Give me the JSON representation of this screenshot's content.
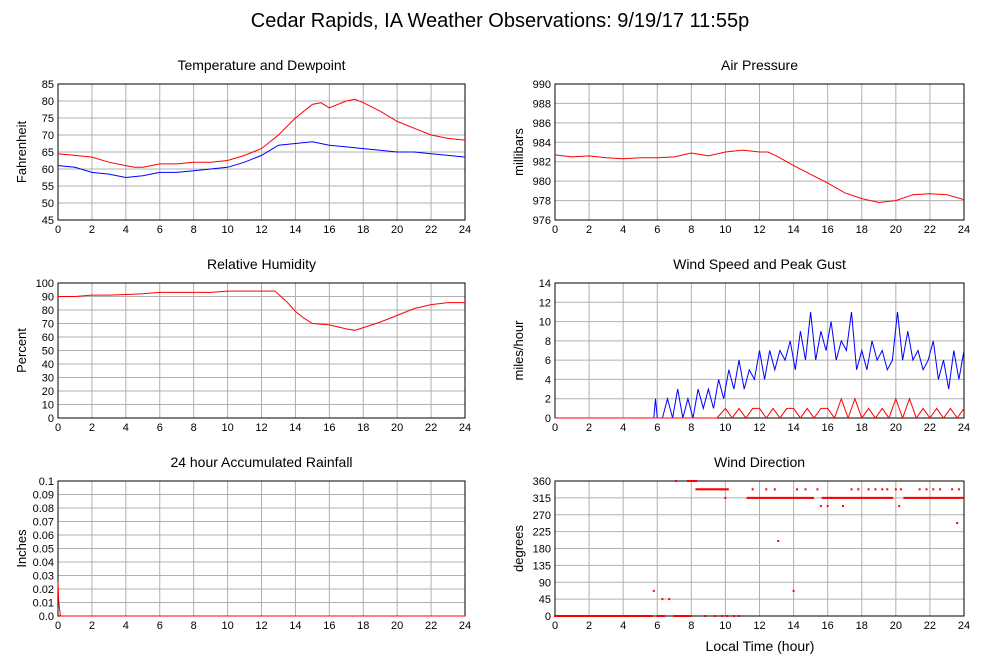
{
  "title": "Cedar Rapids, IA Weather Observations: 9/19/17 11:55p",
  "xlabel": "Local Time (hour)",
  "colors": {
    "red": "#ff0000",
    "blue": "#0000ff",
    "grid": "#b0b0b0",
    "frame": "#000000"
  },
  "chart_data": [
    {
      "type": "line",
      "title": "Temperature and Dewpoint",
      "ylabel": "Fahrenheit",
      "xlim": [
        0,
        24
      ],
      "ylim": [
        45,
        85
      ],
      "xticks": [
        0,
        2,
        4,
        6,
        8,
        10,
        12,
        14,
        16,
        18,
        20,
        22,
        24
      ],
      "yticks": [
        45,
        50,
        55,
        60,
        65,
        70,
        75,
        80,
        85
      ],
      "grid": true,
      "series": [
        {
          "color": "#ff0000",
          "x": [
            0,
            1,
            2,
            3,
            4,
            4.5,
            5,
            6,
            7,
            8,
            9,
            10,
            11,
            12,
            13,
            14,
            15,
            15.5,
            16,
            17,
            17.5,
            18,
            19,
            20,
            21,
            22,
            23,
            24
          ],
          "y": [
            64.5,
            64,
            63.5,
            62,
            61,
            60.5,
            60.5,
            61.5,
            61.5,
            62,
            62,
            62.5,
            64,
            66,
            70,
            75,
            79,
            79.5,
            78,
            80,
            80.5,
            79.5,
            77,
            74,
            72,
            70,
            69,
            68.5
          ]
        },
        {
          "color": "#0000ff",
          "x": [
            0,
            1,
            2,
            3,
            4,
            5,
            6,
            7,
            8,
            9,
            10,
            11,
            12,
            13,
            14,
            15,
            16,
            17,
            18,
            19,
            20,
            21,
            22,
            23,
            24
          ],
          "y": [
            61,
            60.5,
            59,
            58.5,
            57.5,
            58,
            59,
            59,
            59.5,
            60,
            60.5,
            62,
            64,
            67,
            67.5,
            68,
            67,
            66.5,
            66,
            65.5,
            65,
            65,
            64.5,
            64,
            63.5
          ]
        }
      ]
    },
    {
      "type": "line",
      "title": "Air Pressure",
      "ylabel": "millibars",
      "xlim": [
        0,
        24
      ],
      "ylim": [
        976,
        990
      ],
      "xticks": [
        0,
        2,
        4,
        6,
        8,
        10,
        12,
        14,
        16,
        18,
        20,
        22,
        24
      ],
      "yticks": [
        976,
        978,
        980,
        982,
        984,
        986,
        988,
        990
      ],
      "grid": true,
      "series": [
        {
          "color": "#ff0000",
          "x": [
            0,
            1,
            2,
            3,
            4,
            5,
            6,
            7,
            8,
            9,
            10,
            11,
            12,
            12.5,
            13,
            14,
            15,
            16,
            17,
            18,
            19,
            20,
            21,
            22,
            23,
            24
          ],
          "y": [
            982.7,
            982.5,
            982.6,
            982.4,
            982.3,
            982.4,
            982.4,
            982.5,
            982.9,
            982.6,
            983,
            983.2,
            983,
            983,
            982.6,
            981.6,
            980.7,
            979.8,
            978.8,
            978.2,
            977.8,
            978,
            978.6,
            978.7,
            978.6,
            978.1
          ]
        }
      ]
    },
    {
      "type": "line",
      "title": "Relative Humidity",
      "ylabel": "Percent",
      "xlim": [
        0,
        24
      ],
      "ylim": [
        0,
        100
      ],
      "xticks": [
        0,
        2,
        4,
        6,
        8,
        10,
        12,
        14,
        16,
        18,
        20,
        22,
        24
      ],
      "yticks": [
        0,
        10,
        20,
        30,
        40,
        50,
        60,
        70,
        80,
        90,
        100
      ],
      "grid": true,
      "series": [
        {
          "color": "#ff0000",
          "x": [
            0,
            1,
            2,
            3,
            4,
            5,
            6,
            7,
            8,
            9,
            10,
            11,
            12,
            12.8,
            13.5,
            14,
            14.5,
            15,
            16,
            17,
            17.5,
            18,
            19,
            20,
            21,
            22,
            23,
            24
          ],
          "y": [
            90,
            90,
            91,
            91,
            91.5,
            92,
            93,
            93,
            93,
            93,
            94,
            94,
            94,
            94,
            86,
            79,
            74,
            70,
            69,
            66,
            65,
            67,
            71,
            76,
            81,
            84,
            85.5,
            85.5
          ]
        }
      ]
    },
    {
      "type": "line",
      "title": "Wind Speed and Peak Gust",
      "ylabel": "miles/hour",
      "xlim": [
        0,
        24
      ],
      "ylim": [
        0,
        14
      ],
      "xticks": [
        0,
        2,
        4,
        6,
        8,
        10,
        12,
        14,
        16,
        18,
        20,
        22,
        24
      ],
      "yticks": [
        0,
        2,
        4,
        6,
        8,
        10,
        12,
        14
      ],
      "grid": true,
      "series": [
        {
          "color": "#0000ff",
          "x": [
            0,
            5.8,
            5.9,
            6,
            6.3,
            6.6,
            6.9,
            7.2,
            7.5,
            7.8,
            8.1,
            8.4,
            8.7,
            9,
            9.3,
            9.6,
            9.9,
            10.2,
            10.5,
            10.8,
            11.1,
            11.4,
            11.7,
            12,
            12.3,
            12.6,
            12.9,
            13.2,
            13.5,
            13.8,
            14.1,
            14.4,
            14.7,
            15,
            15.3,
            15.6,
            15.9,
            16.2,
            16.5,
            16.8,
            17.1,
            17.4,
            17.7,
            18,
            18.3,
            18.6,
            18.9,
            19.2,
            19.5,
            19.8,
            20.1,
            20.4,
            20.7,
            21,
            21.3,
            21.6,
            21.9,
            22.2,
            22.5,
            22.8,
            23.1,
            23.4,
            23.7,
            24
          ],
          "y": [
            0,
            0,
            2,
            0,
            0,
            2,
            0,
            3,
            0,
            2,
            0,
            3,
            1,
            3,
            1,
            4,
            2,
            5,
            3,
            6,
            3,
            5,
            4,
            7,
            4,
            7,
            5,
            7,
            6,
            8,
            5,
            9,
            6,
            11,
            6,
            9,
            7,
            10,
            6,
            8,
            7,
            11,
            5,
            7,
            5,
            8,
            6,
            7,
            5,
            6,
            11,
            6,
            9,
            6,
            7,
            5,
            6,
            8,
            4,
            6,
            3,
            7,
            4,
            7
          ]
        },
        {
          "color": "#ff0000",
          "x": [
            0,
            9,
            9.5,
            10,
            10.4,
            10.8,
            11.2,
            11.6,
            12,
            12.4,
            12.8,
            13.2,
            13.6,
            14,
            14.4,
            14.8,
            15.2,
            15.6,
            16,
            16.4,
            16.8,
            17.2,
            17.6,
            18,
            18.4,
            18.8,
            19.2,
            19.6,
            20,
            20.4,
            20.8,
            21.2,
            21.6,
            22,
            22.4,
            22.8,
            23.2,
            23.6,
            24
          ],
          "y": [
            0,
            0,
            0,
            1,
            0,
            1,
            0,
            1,
            1,
            0,
            1,
            0,
            1,
            1,
            0,
            1,
            0,
            1,
            1,
            0,
            2,
            0,
            2,
            0,
            1,
            0,
            1,
            0,
            2,
            0,
            2,
            0,
            1,
            0,
            1,
            0,
            1,
            0,
            1
          ]
        }
      ]
    },
    {
      "type": "line",
      "title": "24 hour Accumulated Rainfall",
      "ylabel": "Inches",
      "xlim": [
        0,
        24
      ],
      "ylim": [
        0,
        0.1
      ],
      "xticks": [
        0,
        2,
        4,
        6,
        8,
        10,
        12,
        14,
        16,
        18,
        20,
        22,
        24
      ],
      "yticks": [
        0.0,
        0.01,
        0.02,
        0.03,
        0.04,
        0.05,
        0.06,
        0.07,
        0.08,
        0.09,
        0.1
      ],
      "ytick_labels": [
        "0.0",
        "0.01",
        "0.02",
        "0.03",
        "0.04",
        "0.05",
        "0.06",
        "0.07",
        "0.08",
        "0.09",
        "0.1"
      ],
      "grid": true,
      "series": [
        {
          "color": "#ff0000",
          "x": [
            0,
            0.05,
            0.15,
            24
          ],
          "y": [
            0.025,
            0.01,
            0,
            0
          ]
        }
      ]
    },
    {
      "type": "scatter",
      "title": "Wind Direction",
      "ylabel": "degrees",
      "xlim": [
        0,
        24
      ],
      "ylim": [
        0,
        360
      ],
      "xticks": [
        0,
        2,
        4,
        6,
        8,
        10,
        12,
        14,
        16,
        18,
        20,
        22,
        24
      ],
      "yticks": [
        0,
        45,
        90,
        135,
        180,
        225,
        270,
        315,
        360
      ],
      "grid": true,
      "series": [
        {
          "color": "#ff0000",
          "dense_segments": [
            {
              "x_start": 0,
              "x_end": 5.7,
              "y": 0
            },
            {
              "x_start": 6.0,
              "x_end": 6.4,
              "y": 0
            },
            {
              "x_start": 7.0,
              "x_end": 8.0,
              "y": 0
            },
            {
              "x_start": 7.8,
              "x_end": 8.3,
              "y": 360
            },
            {
              "x_start": 8.3,
              "x_end": 10.2,
              "y": 338
            },
            {
              "x_start": 11.3,
              "x_end": 15.2,
              "y": 315
            },
            {
              "x_start": 15.7,
              "x_end": 19.8,
              "y": 315
            },
            {
              "x_start": 20.5,
              "x_end": 24,
              "y": 315
            }
          ],
          "x": [
            5.8,
            6.3,
            6.7,
            7.1,
            8.8,
            9.4,
            9.8,
            10.1,
            10.5,
            10.8,
            10.0,
            11.6,
            12.4,
            12.9,
            14.2,
            14.7,
            15.4,
            15.6,
            16.0,
            16.2,
            16.9,
            17.4,
            17.8,
            18.4,
            18.8,
            19.2,
            19.5,
            20.0,
            20.3,
            20.2,
            21.4,
            21.8,
            22.2,
            22.6,
            23.3,
            23.6,
            23.7,
            13.1,
            14.0
          ],
          "y": [
            67,
            45,
            45,
            360,
            0,
            0,
            0,
            0,
            0,
            0,
            315,
            338,
            338,
            338,
            338,
            338,
            338,
            293,
            293,
            315,
            293,
            338,
            338,
            338,
            338,
            338,
            338,
            338,
            338,
            293,
            338,
            338,
            338,
            338,
            338,
            248,
            338,
            200,
            67
          ]
        }
      ]
    }
  ]
}
